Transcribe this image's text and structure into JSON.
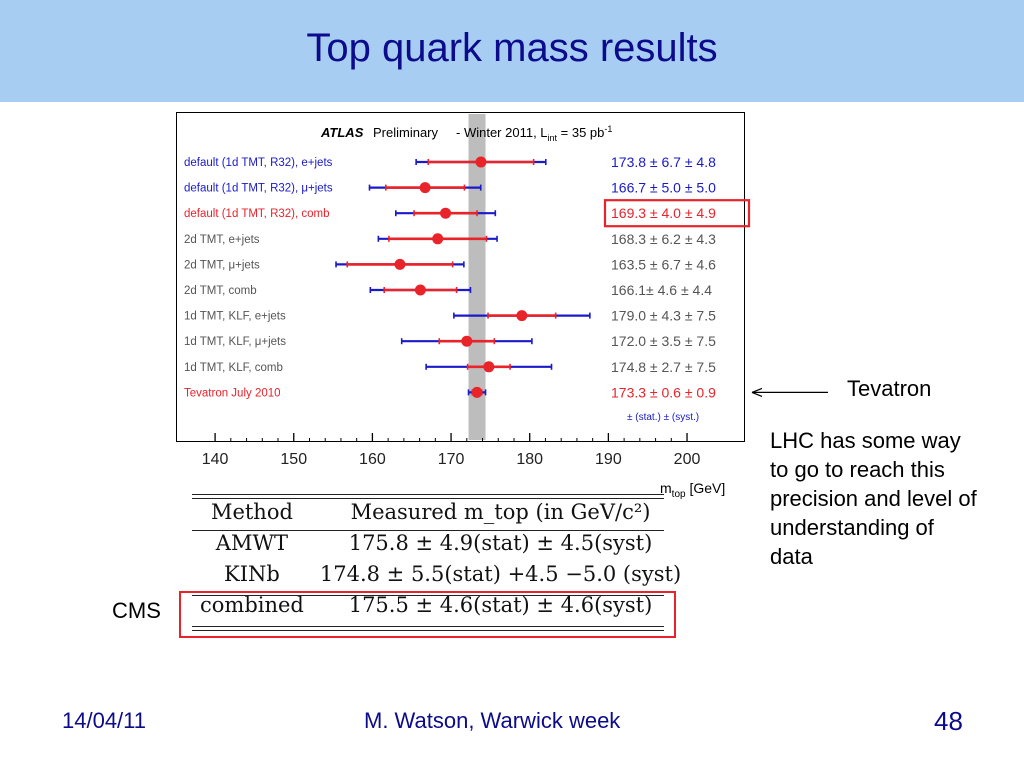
{
  "slide": {
    "title": "Top quark mass results",
    "tevatron_label": "Tevatron",
    "lhc_note": [
      "LHC has some way",
      "to go to reach this",
      "precision and level of",
      "understanding of",
      "data"
    ],
    "cms_label": "CMS",
    "footer": {
      "date": "14/04/11",
      "author": "M. Watson, Warwick week",
      "page": "48"
    }
  },
  "colors": {
    "title_band": "#a8cdf3",
    "title_text": "#0b0b8c",
    "blue": "#1a1ac8",
    "red": "#e8232a",
    "gray_text": "#555555",
    "band": "#bdbdbd"
  },
  "chart_data": {
    "type": "scatter",
    "header": {
      "atlas": "ATLAS",
      "preliminary": "Preliminary",
      "rest": "-  Winter 2011,  L",
      "sub": "int",
      "lumi": " = 35 pb",
      "sup": "-1"
    },
    "xlabel": "m",
    "xlabel_sub": "top",
    "xlabel_unit": " [GeV]",
    "xlim": [
      137,
      204
    ],
    "xticks": [
      140,
      150,
      160,
      170,
      180,
      190,
      200
    ],
    "band": {
      "center": 173.3,
      "halfwidth": 1.08
    },
    "legend_note": "± (stat.) ± (syst.)",
    "series": [
      {
        "label": "default (1d TMT, R32), e+jets",
        "label_color": "#1a1ac8",
        "value": 173.8,
        "stat": 6.7,
        "syst": 4.8,
        "text": "173.8 ± 6.7 ± 4.8",
        "text_color": "#1a1ac8"
      },
      {
        "label": "default (1d TMT, R32), μ+jets",
        "label_color": "#1a1ac8",
        "value": 166.7,
        "stat": 5.0,
        "syst": 5.0,
        "text": "166.7 ± 5.0 ± 5.0",
        "text_color": "#1a1ac8"
      },
      {
        "label": "default (1d TMT, R32), comb",
        "label_color": "#e8232a",
        "value": 169.3,
        "stat": 4.0,
        "syst": 4.9,
        "text": "169.3 ± 4.0 ± 4.9",
        "text_color": "#e8232a",
        "boxed": true
      },
      {
        "label": "2d TMT, e+jets",
        "label_color": "#555555",
        "value": 168.3,
        "stat": 6.2,
        "syst": 4.3,
        "text": "168.3 ± 6.2 ± 4.3",
        "text_color": "#555555"
      },
      {
        "label": "2d TMT, μ+jets",
        "label_color": "#555555",
        "value": 163.5,
        "stat": 6.7,
        "syst": 4.6,
        "text": "163.5 ± 6.7 ± 4.6",
        "text_color": "#555555"
      },
      {
        "label": "2d TMT, comb",
        "label_color": "#555555",
        "value": 166.1,
        "stat": 4.6,
        "syst": 4.4,
        "text": "166.1± 4.6 ± 4.4",
        "text_color": "#555555"
      },
      {
        "label": "1d TMT, KLF, e+jets",
        "label_color": "#555555",
        "value": 179.0,
        "stat": 4.3,
        "syst": 7.5,
        "text": "179.0 ± 4.3 ± 7.5",
        "text_color": "#555555"
      },
      {
        "label": "1d TMT, KLF, μ+jets",
        "label_color": "#555555",
        "value": 172.0,
        "stat": 3.5,
        "syst": 7.5,
        "text": "172.0 ± 3.5 ± 7.5",
        "text_color": "#555555"
      },
      {
        "label": "1d TMT, KLF, comb",
        "label_color": "#555555",
        "value": 174.8,
        "stat": 2.7,
        "syst": 7.5,
        "text": "174.8 ± 2.7 ± 7.5",
        "text_color": "#555555"
      },
      {
        "label": "Tevatron July 2010",
        "label_color": "#e8232a",
        "value": 173.3,
        "stat": 0.6,
        "syst": 0.9,
        "text": "173.3 ± 0.6 ± 0.9",
        "text_color": "#e8232a"
      }
    ]
  },
  "cms_table": {
    "headers": [
      "Method",
      "Measured m_top (in GeV/c²)"
    ],
    "rows": [
      [
        "AMWT",
        "175.8 ± 4.9(stat) ± 4.5(syst)"
      ],
      [
        "KINb",
        "174.8 ± 5.5(stat) +4.5 −5.0 (syst)"
      ],
      [
        "combined",
        "175.5 ± 4.6(stat) ± 4.6(syst)"
      ]
    ]
  }
}
